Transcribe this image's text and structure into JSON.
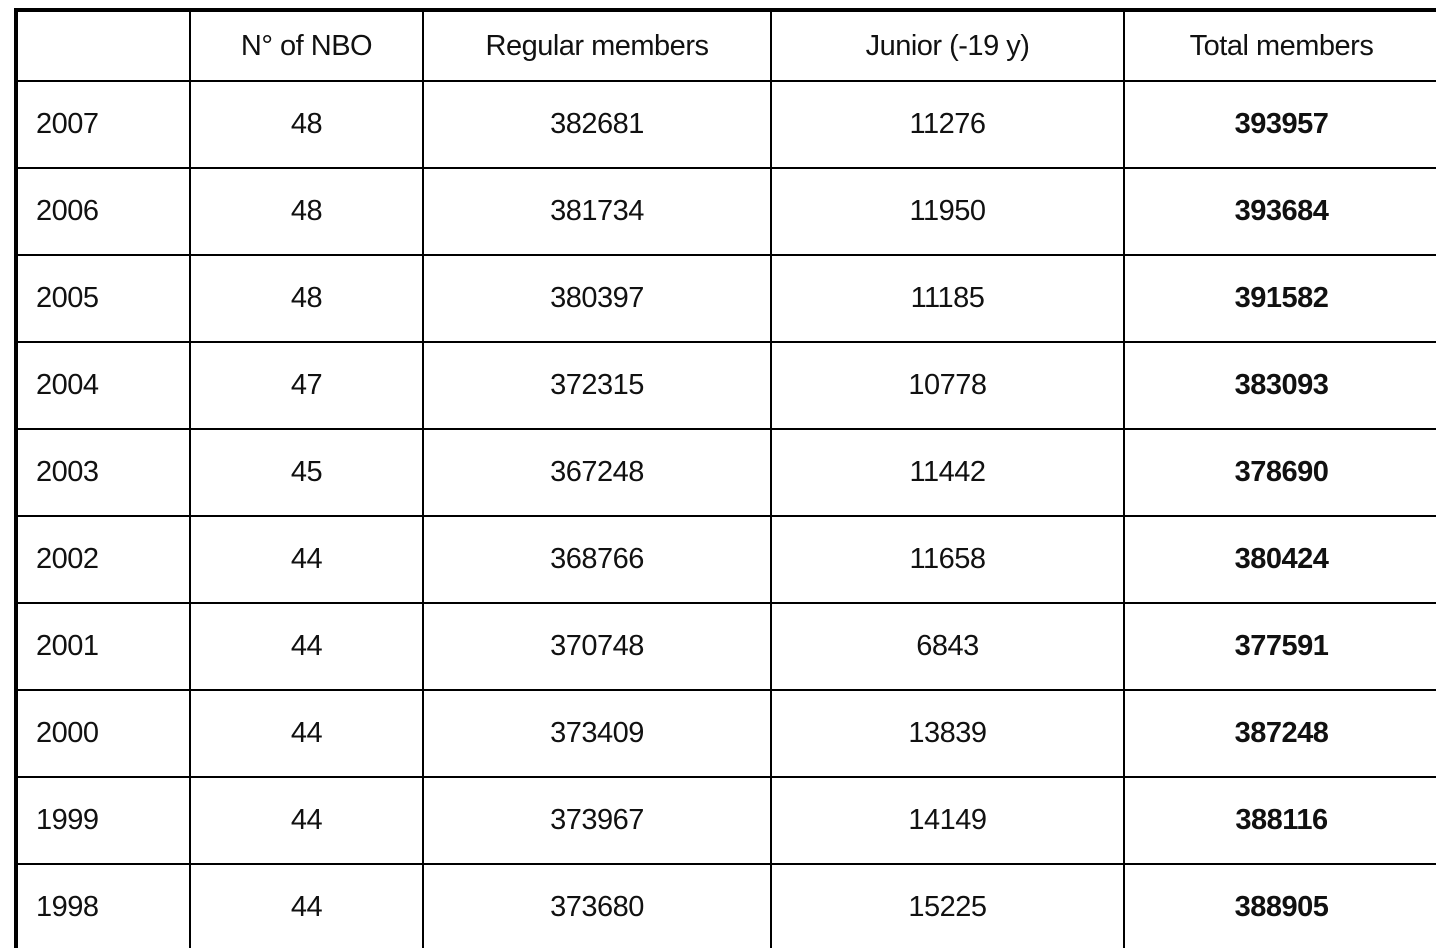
{
  "table": {
    "header": [
      "",
      "N° of NBO",
      "Regular members",
      "Junior (-19 y)",
      "Total members"
    ],
    "rows": [
      [
        "2007",
        48,
        382681,
        11276,
        393957
      ],
      [
        "2006",
        48,
        381734,
        11950,
        393684
      ],
      [
        "2005",
        48,
        380397,
        11185,
        391582
      ],
      [
        "2004",
        47,
        372315,
        10778,
        383093
      ],
      [
        "2003",
        45,
        367248,
        11442,
        378690
      ],
      [
        "2002",
        44,
        368766,
        11658,
        380424
      ],
      [
        "2001",
        44,
        370748,
        6843,
        377591
      ],
      [
        "2000",
        44,
        373409,
        13839,
        387248
      ],
      [
        "1999",
        44,
        373967,
        14149,
        388116
      ],
      [
        "1998",
        44,
        373680,
        15225,
        388905
      ]
    ]
  }
}
